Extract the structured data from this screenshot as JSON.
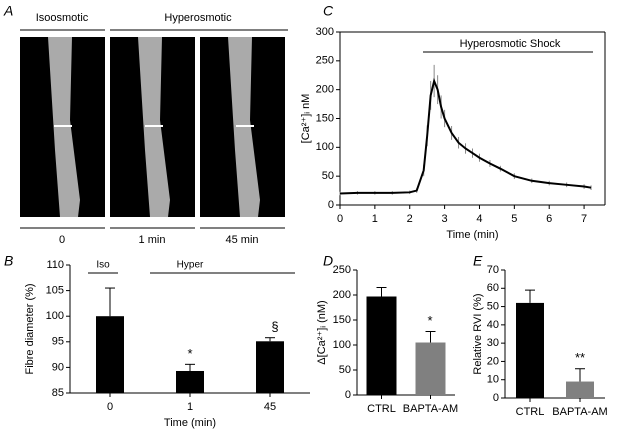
{
  "images": {
    "label": "A",
    "groups": [
      "Isoosmotic",
      "Hyperosmotic"
    ],
    "times": [
      "0",
      "1 min",
      "45 min"
    ]
  },
  "chart_data": [
    {
      "type": "bar",
      "panel_label": "B",
      "y_label": "Fibre diameter (%)",
      "x_label": "Time (min)",
      "categories": [
        "0",
        "1",
        "45"
      ],
      "values": [
        100,
        89.3,
        95.1
      ],
      "errors": [
        5.5,
        1.3,
        0.7
      ],
      "colors": [
        "#000000",
        "#000000",
        "#000000"
      ],
      "ylim": [
        85,
        110
      ],
      "yticks": [
        85,
        90,
        95,
        100,
        105,
        110
      ],
      "annotations": [
        "Iso",
        "Hyper",
        "*",
        "§"
      ]
    },
    {
      "type": "line",
      "panel_label": "C",
      "y_label": "[Ca²⁺]ᵢ nM",
      "x_label": "Time (min)",
      "x": [
        0,
        0.5,
        1,
        1.5,
        2,
        2.2,
        2.4,
        2.5,
        2.6,
        2.7,
        2.8,
        2.9,
        3.0,
        3.2,
        3.4,
        3.6,
        3.8,
        4.0,
        4.3,
        4.6,
        5.0,
        5.5,
        6.0,
        6.5,
        7.0,
        7.2
      ],
      "values": [
        20,
        21,
        21,
        21,
        22,
        25,
        60,
        120,
        190,
        215,
        200,
        170,
        150,
        125,
        108,
        98,
        90,
        82,
        72,
        63,
        50,
        42,
        38,
        35,
        32,
        30
      ],
      "errors": [
        3,
        3,
        3,
        3,
        3,
        4,
        10,
        18,
        25,
        28,
        25,
        20,
        15,
        12,
        10,
        9,
        8,
        7,
        6,
        5,
        5,
        4,
        4,
        4,
        4,
        4
      ],
      "color": "#000000",
      "xlim": [
        0,
        7.6
      ],
      "xticks": [
        0,
        1,
        2,
        3,
        4,
        5,
        6,
        7
      ],
      "ylim": [
        0,
        300
      ],
      "yticks": [
        0,
        50,
        100,
        150,
        200,
        250,
        300
      ],
      "annotations": [
        "Hyperosmotic Shock"
      ]
    },
    {
      "type": "bar",
      "panel_label": "D",
      "y_label": "Δ[Ca²⁺]ᵢ (nM)",
      "categories": [
        "CTRL",
        "BAPTA-AM"
      ],
      "values": [
        197,
        105
      ],
      "errors": [
        18,
        22
      ],
      "colors": [
        "#000000",
        "#808080"
      ],
      "ylim": [
        0,
        250
      ],
      "yticks": [
        0,
        50,
        100,
        150,
        200,
        250
      ],
      "annotations": [
        "*"
      ]
    },
    {
      "type": "bar",
      "panel_label": "E",
      "y_label": "Relative RVI (%)",
      "categories": [
        "CTRL",
        "BAPTA-AM"
      ],
      "values": [
        52,
        9
      ],
      "errors": [
        7,
        7
      ],
      "colors": [
        "#000000",
        "#808080"
      ],
      "ylim": [
        0,
        70
      ],
      "yticks": [
        0,
        10,
        20,
        30,
        40,
        50,
        60,
        70
      ],
      "annotations": [
        "**"
      ]
    }
  ]
}
